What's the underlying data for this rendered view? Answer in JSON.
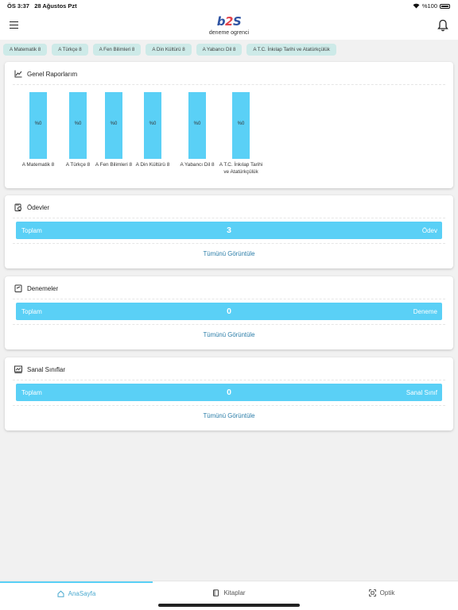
{
  "status": {
    "time": "ÖS 3:37",
    "date": "28 Ağustos Pzt",
    "battery": "%100"
  },
  "header": {
    "logo_left": "b",
    "logo_mid": "2",
    "logo_right": "S",
    "user_name": "deneme ogrenci"
  },
  "chips": [
    "A Matematik 8",
    "A Türkçe 8",
    "A Fen Bilimleri 8",
    "A Din Kültürü 8",
    "A Yabancı Dil 8",
    "A T.C. İnkılap Tarihi ve Atatürkçülük"
  ],
  "reports": {
    "title": "Genel Raporlarım",
    "chart_data": {
      "type": "bar",
      "categories": [
        "A Matematik 8",
        "A Türkçe 8",
        "A Fen Bilimleri 8",
        "A Din Kültürü 8",
        "A Yabancı Dil 8",
        "A T.C. İnkılap Tarihi ve Atatürkçülük"
      ],
      "values": [
        0,
        0,
        0,
        0,
        0,
        0
      ],
      "value_labels": [
        "%0",
        "%0",
        "%0",
        "%0",
        "%0",
        "%0"
      ],
      "title": "Genel Raporlarım",
      "xlabel": "",
      "ylabel": "",
      "bar_color": "#5ad0f6"
    }
  },
  "homework": {
    "title": "Ödevler",
    "left": "Toplam",
    "count": "3",
    "right": "Ödev",
    "view_all": "Tümünü Görüntüle"
  },
  "exams": {
    "title": "Denemeler",
    "left": "Toplam",
    "count": "0",
    "right": "Deneme",
    "view_all": "Tümünü Görüntüle"
  },
  "classes": {
    "title": "Sanal Sınıflar",
    "left": "Toplam",
    "count": "0",
    "right": "Sanal Sınıf",
    "view_all": "Tümünü Görüntüle"
  },
  "tabs": [
    {
      "label": "AnaSayfa",
      "icon": "home-icon",
      "active": true
    },
    {
      "label": "Kitaplar",
      "icon": "book-icon",
      "active": false
    },
    {
      "label": "Optik",
      "icon": "scan-icon",
      "active": false
    }
  ],
  "colors": {
    "accent": "#5ad0f6",
    "chip_bg": "#cdeae8",
    "link": "#2b7da8",
    "tab_active": "#4aa9cf"
  }
}
